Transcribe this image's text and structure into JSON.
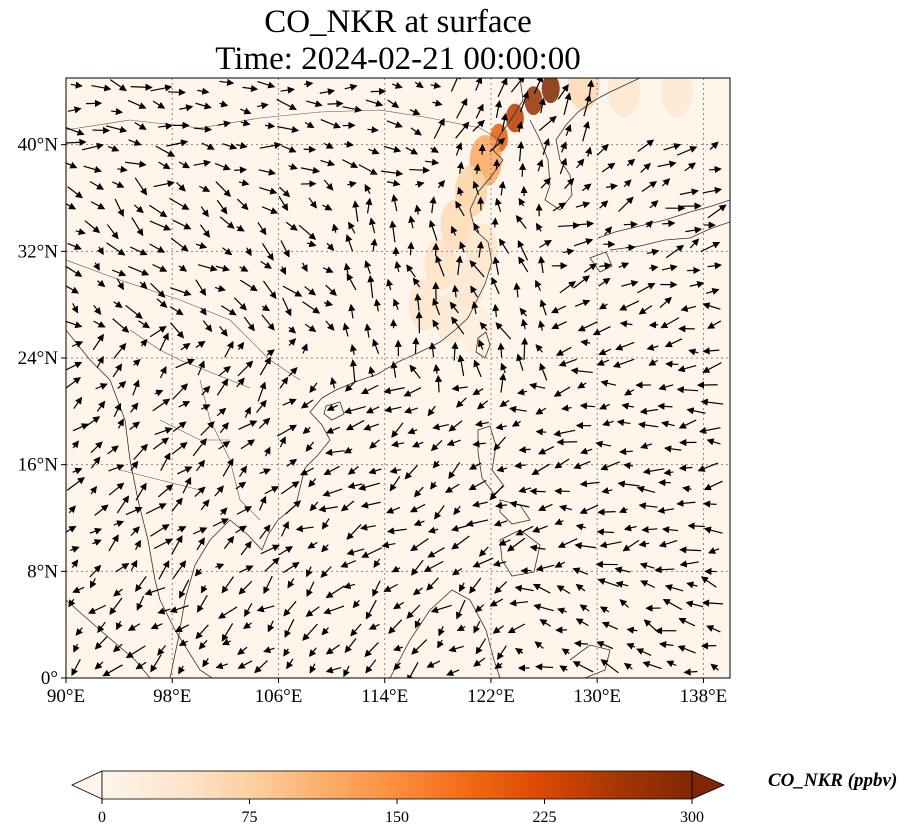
{
  "title": {
    "line1": "CO_NKR at surface",
    "line2": "Time: 2024-02-21 00:00:00"
  },
  "map": {
    "lon_range": [
      90,
      140
    ],
    "lat_range": [
      0,
      45
    ],
    "lon_ticks": [
      {
        "value": 90,
        "label": "90°E"
      },
      {
        "value": 98,
        "label": "98°E"
      },
      {
        "value": 106,
        "label": "106°E"
      },
      {
        "value": 114,
        "label": "114°E"
      },
      {
        "value": 122,
        "label": "122°E"
      },
      {
        "value": 130,
        "label": "130°E"
      },
      {
        "value": 138,
        "label": "138°E"
      }
    ],
    "lat_ticks": [
      {
        "value": 0,
        "label": "0°"
      },
      {
        "value": 8,
        "label": "8°N"
      },
      {
        "value": 16,
        "label": "16°N"
      },
      {
        "value": 24,
        "label": "24°N"
      },
      {
        "value": 32,
        "label": "32°N"
      },
      {
        "value": 40,
        "label": "40°N"
      }
    ],
    "gridlines": "dotted",
    "background_color": "#fff5eb",
    "plume": [
      {
        "lon": 126.5,
        "lat": 44.2,
        "value": 300
      },
      {
        "lon": 125.2,
        "lat": 43.3,
        "value": 280
      },
      {
        "lon": 123.8,
        "lat": 42.0,
        "value": 250
      },
      {
        "lon": 122.6,
        "lat": 40.5,
        "value": 200
      },
      {
        "lon": 121.6,
        "lat": 38.8,
        "value": 120
      },
      {
        "lon": 120.5,
        "lat": 36.5,
        "value": 70
      },
      {
        "lon": 119.4,
        "lat": 34.0,
        "value": 55
      },
      {
        "lon": 118.2,
        "lat": 31.0,
        "value": 45
      },
      {
        "lon": 117.0,
        "lat": 28.0,
        "value": 40
      },
      {
        "lon": 121.3,
        "lat": 32.2,
        "value": 40
      },
      {
        "lon": 120.3,
        "lat": 29.5,
        "value": 35
      },
      {
        "lon": 119.0,
        "lat": 27.0,
        "value": 30
      },
      {
        "lon": 121.0,
        "lat": 26.0,
        "value": 20
      },
      {
        "lon": 132.0,
        "lat": 44.0,
        "value": 35
      },
      {
        "lon": 136.0,
        "lat": 44.0,
        "value": 30
      },
      {
        "lon": 129.0,
        "lat": 44.5,
        "value": 60
      }
    ],
    "wind_regions": [
      {
        "name": "north-westerlies",
        "lon": [
          90,
          118
        ],
        "lat": [
          37,
          45
        ],
        "u": 1.0,
        "v": -0.2
      },
      {
        "name": "inland-north",
        "lon": [
          90,
          110
        ],
        "lat": [
          26,
          37
        ],
        "u": 0.6,
        "v": -0.5
      },
      {
        "name": "china-coast-northeasterly",
        "lon": [
          110,
          126
        ],
        "lat": [
          22,
          37
        ],
        "u": -0.3,
        "v": 1.0
      },
      {
        "name": "manchuria-plume",
        "lon": [
          118,
          130
        ],
        "lat": [
          36,
          45
        ],
        "u": 0.5,
        "v": 1.0
      },
      {
        "name": "japan-westerlies",
        "lon": [
          126,
          140
        ],
        "lat": [
          28,
          40
        ],
        "u": 1.0,
        "v": 0.45
      },
      {
        "name": "pacific-trades",
        "lon": [
          124,
          140
        ],
        "lat": [
          8,
          28
        ],
        "u": -1.0,
        "v": -0.15
      },
      {
        "name": "south-china-sea",
        "lon": [
          108,
          124
        ],
        "lat": [
          8,
          22
        ],
        "u": -0.9,
        "v": -0.55
      },
      {
        "name": "indochina",
        "lon": [
          90,
          108
        ],
        "lat": [
          8,
          26
        ],
        "u": 0.4,
        "v": 0.4
      },
      {
        "name": "equatorial",
        "lon": [
          90,
          124
        ],
        "lat": [
          0,
          8
        ],
        "u": -0.7,
        "v": -0.6
      },
      {
        "name": "equatorial-pacific",
        "lon": [
          124,
          140
        ],
        "lat": [
          0,
          8
        ],
        "u": -1.0,
        "v": 0.3
      }
    ]
  },
  "colorbar": {
    "label": "CO_NKR (ppbv)",
    "min": 0,
    "max": 300,
    "ticks": [
      {
        "value": 0,
        "label": "0"
      },
      {
        "value": 75,
        "label": "75"
      },
      {
        "value": 150,
        "label": "150"
      },
      {
        "value": 225,
        "label": "225"
      },
      {
        "value": 300,
        "label": "300"
      }
    ],
    "colormap": [
      "#fff5eb",
      "#fee6ce",
      "#fdd0a2",
      "#fdae6b",
      "#fd8d3c",
      "#f16913",
      "#d94801",
      "#a63603",
      "#7f2704"
    ],
    "extend": "both"
  }
}
